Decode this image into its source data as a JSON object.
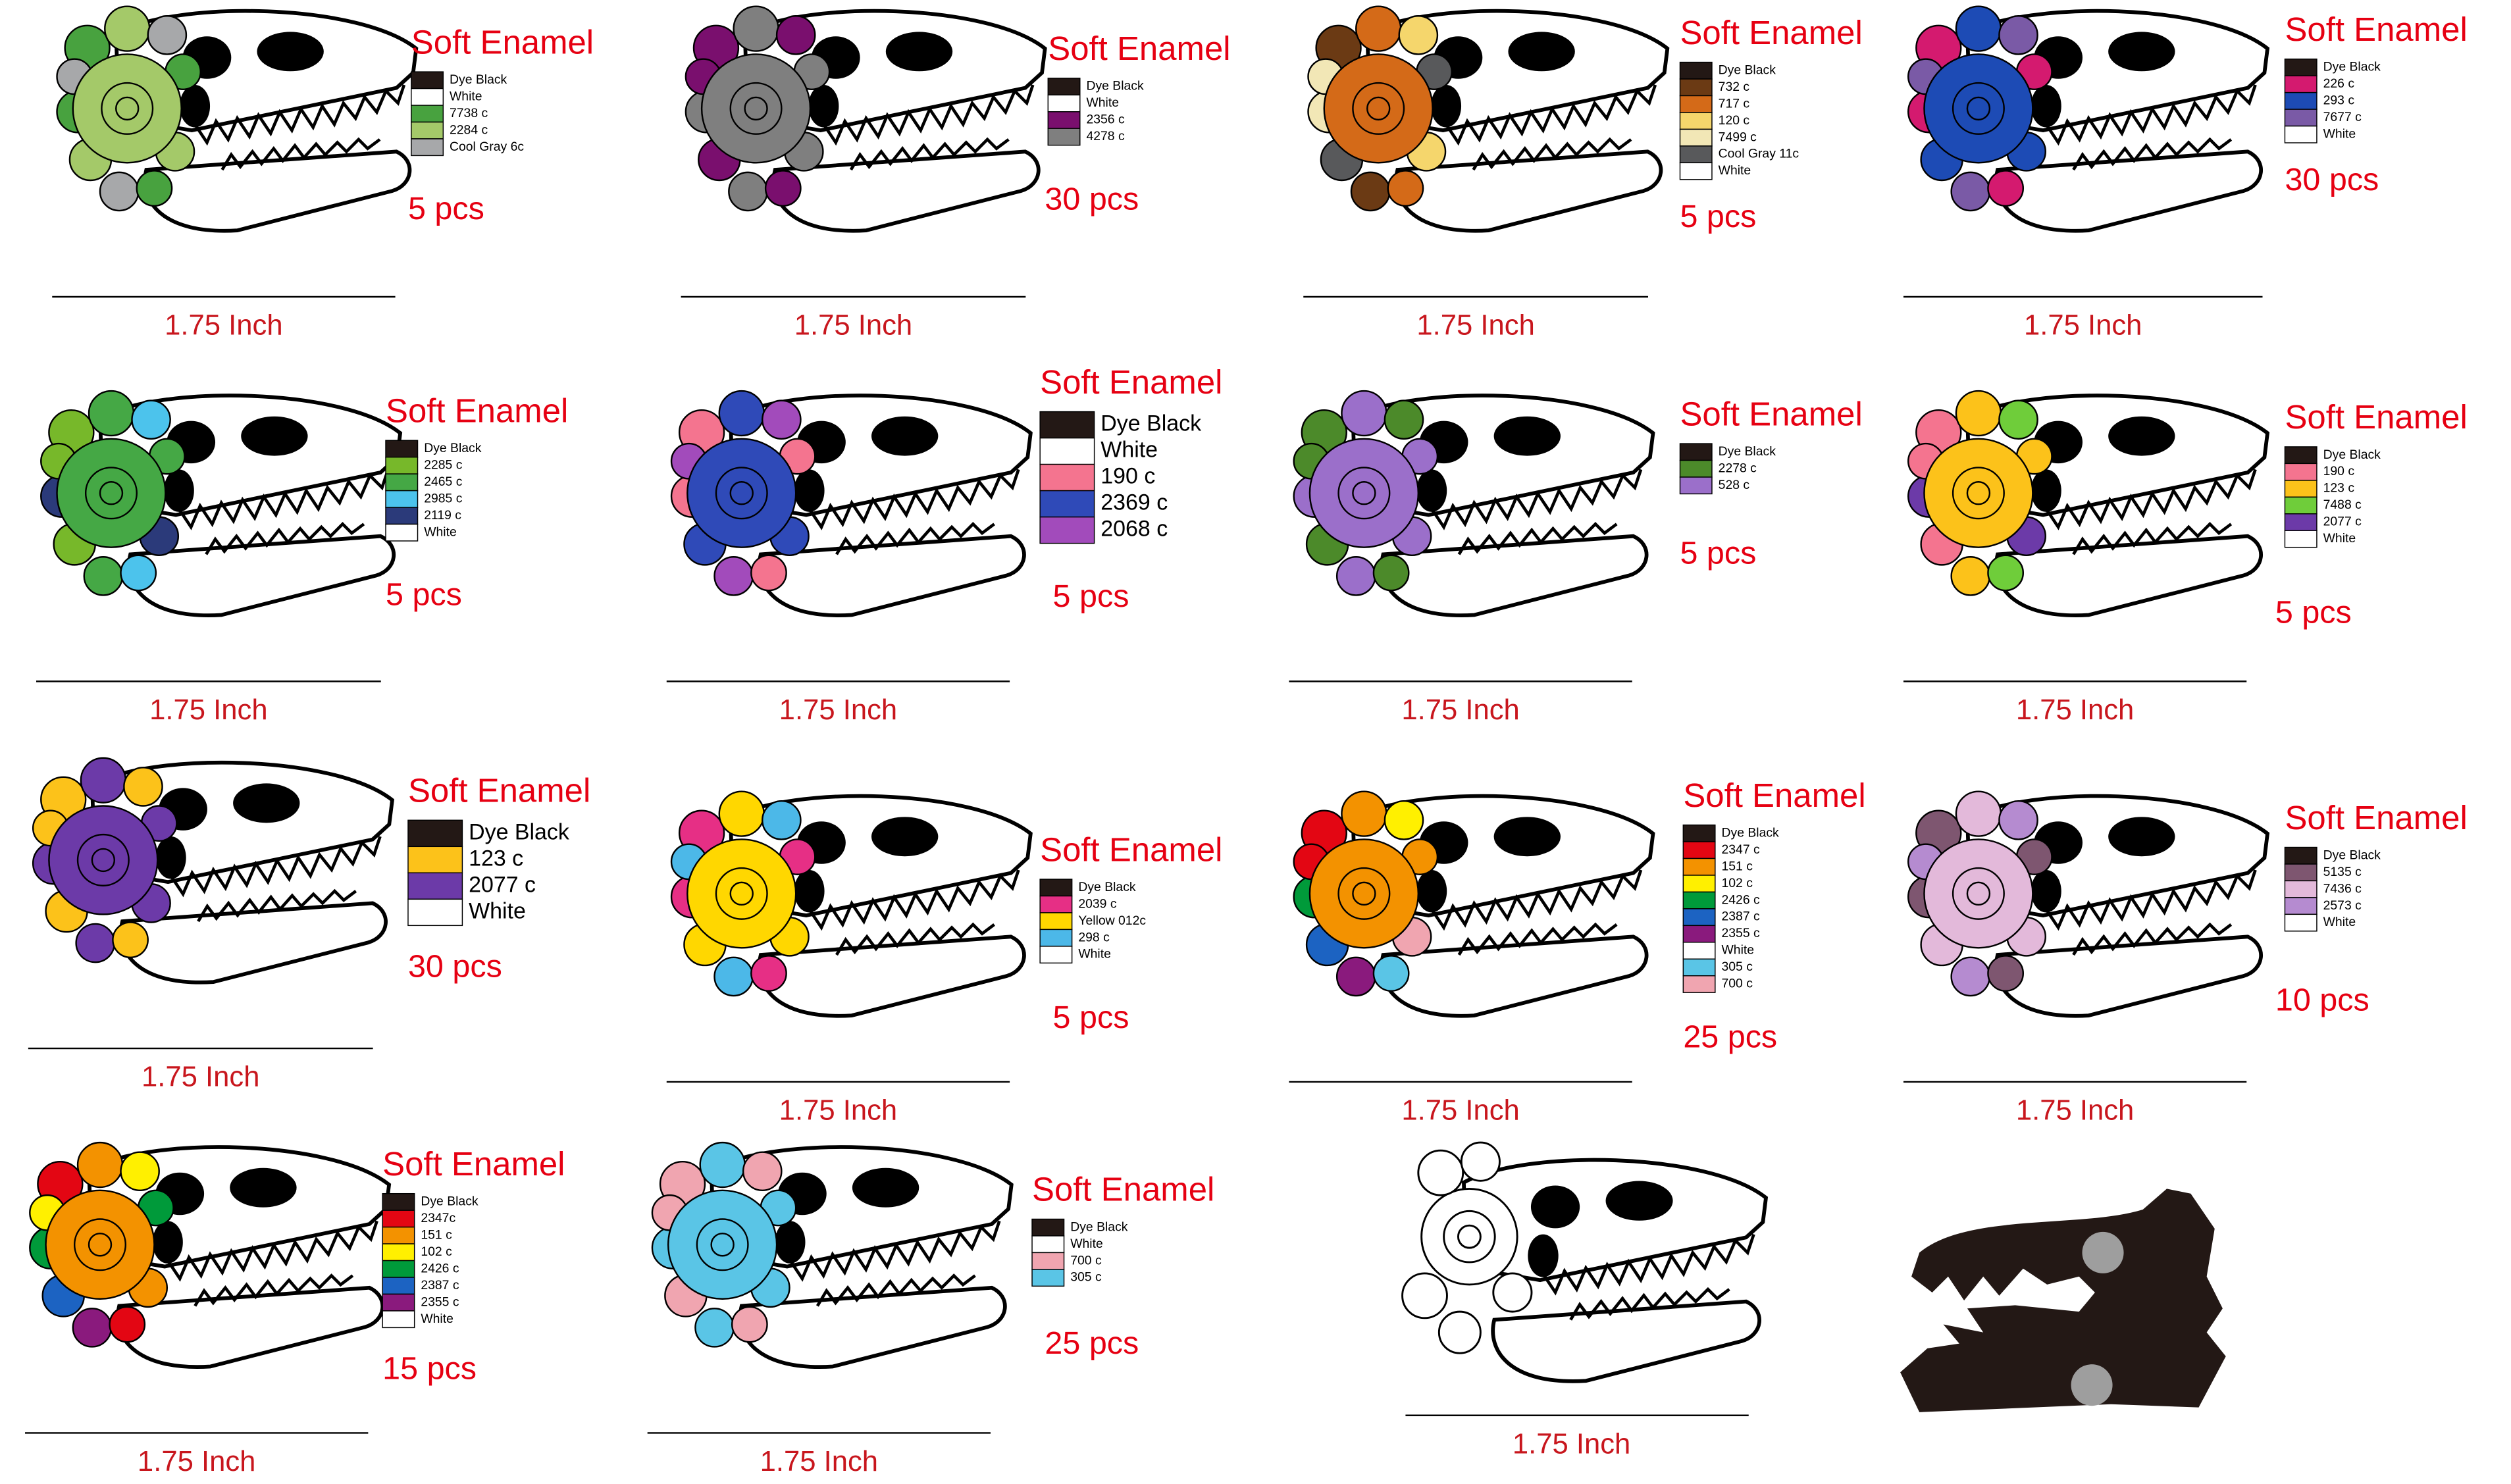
{
  "pins": [
    {
      "title": "Soft Enamel",
      "swatches": [
        {
          "name": "Dye Black",
          "color": "#231815"
        },
        {
          "name": "White",
          "color": "#ffffff"
        },
        {
          "name": "7738 c",
          "color": "#48a23f"
        },
        {
          "name": "2284 c",
          "color": "#a4c969"
        },
        {
          "name": "Cool Gray 6c",
          "color": "#a7a8aa"
        }
      ],
      "quantity": "5 pcs",
      "size": "1.75 Inch"
    },
    {
      "title": "Soft Enamel",
      "swatches": [
        {
          "name": "Dye Black",
          "color": "#231815"
        },
        {
          "name": "White",
          "color": "#ffffff"
        },
        {
          "name": "2356 c",
          "color": "#7a0f6e"
        },
        {
          "name": "4278 c",
          "color": "#7f7f7f"
        }
      ],
      "quantity": "30 pcs",
      "size": "1.75 Inch"
    },
    {
      "title": "Soft Enamel",
      "swatches": [
        {
          "name": "Dye Black",
          "color": "#231815"
        },
        {
          "name": "732 c",
          "color": "#6b3a14"
        },
        {
          "name": "717 c",
          "color": "#d46a18"
        },
        {
          "name": "120 c",
          "color": "#f5d66c"
        },
        {
          "name": "7499 c",
          "color": "#f2e7b6"
        },
        {
          "name": "Cool Gray 11c",
          "color": "#58595b"
        },
        {
          "name": "White",
          "color": "#ffffff"
        }
      ],
      "quantity": "5 pcs",
      "size": "1.75 Inch"
    },
    {
      "title": "Soft Enamel",
      "swatches": [
        {
          "name": "Dye Black",
          "color": "#231815"
        },
        {
          "name": "226 c",
          "color": "#d41a6f"
        },
        {
          "name": "293 c",
          "color": "#1d4bb5"
        },
        {
          "name": "7677 c",
          "color": "#7a5aa6"
        },
        {
          "name": "White",
          "color": "#ffffff"
        }
      ],
      "quantity": "30 pcs",
      "size": "1.75 Inch"
    },
    {
      "title": "Soft Enamel",
      "swatches": [
        {
          "name": "Dye Black",
          "color": "#231815"
        },
        {
          "name": "2285 c",
          "color": "#77b82a"
        },
        {
          "name": "2465 c",
          "color": "#45a845"
        },
        {
          "name": "2985 c",
          "color": "#4cc3ec"
        },
        {
          "name": "2119 c",
          "color": "#2b3a7a"
        },
        {
          "name": "White",
          "color": "#ffffff"
        }
      ],
      "quantity": "5 pcs",
      "size": "1.75 Inch"
    },
    {
      "title": "Soft Enamel",
      "swatches": [
        {
          "name": "Dye Black",
          "color": "#231815"
        },
        {
          "name": "White",
          "color": "#ffffff"
        },
        {
          "name": "190 c",
          "color": "#f4748f"
        },
        {
          "name": "2369 c",
          "color": "#2f4ab8"
        },
        {
          "name": "2068 c",
          "color": "#a24bbb"
        }
      ],
      "quantity": "5 pcs",
      "size": "1.75 Inch"
    },
    {
      "title": "Soft Enamel",
      "swatches": [
        {
          "name": "Dye Black",
          "color": "#231815"
        },
        {
          "name": "2278 c",
          "color": "#4c8a2a"
        },
        {
          "name": "528 c",
          "color": "#9b6fca"
        }
      ],
      "quantity": "5 pcs",
      "size": "1.75 Inch"
    },
    {
      "title": "Soft Enamel",
      "swatches": [
        {
          "name": "Dye Black",
          "color": "#231815"
        },
        {
          "name": "190 c",
          "color": "#f4748f"
        },
        {
          "name": "123 c",
          "color": "#fcc21a"
        },
        {
          "name": "7488 c",
          "color": "#6fcd3a"
        },
        {
          "name": "2077 c",
          "color": "#6c3aa8"
        },
        {
          "name": "White",
          "color": "#ffffff"
        }
      ],
      "quantity": "5 pcs",
      "size": "1.75 Inch"
    },
    {
      "title": "Soft Enamel",
      "swatches": [
        {
          "name": "Dye Black",
          "color": "#231815"
        },
        {
          "name": "123 c",
          "color": "#fcc21a"
        },
        {
          "name": "2077 c",
          "color": "#6c3aa8"
        },
        {
          "name": "White",
          "color": "#ffffff"
        }
      ],
      "quantity": "30 pcs",
      "size": "1.75 Inch"
    },
    {
      "title": "Soft Enamel",
      "swatches": [
        {
          "name": "Dye Black",
          "color": "#231815"
        },
        {
          "name": "2039 c",
          "color": "#e62f85"
        },
        {
          "name": "Yellow 012c",
          "color": "#ffd700"
        },
        {
          "name": "298 c",
          "color": "#4cb8e8"
        },
        {
          "name": "White",
          "color": "#ffffff"
        }
      ],
      "quantity": "5 pcs",
      "size": "1.75 Inch"
    },
    {
      "title": "Soft Enamel",
      "swatches": [
        {
          "name": "Dye Black",
          "color": "#231815"
        },
        {
          "name": "2347 c",
          "color": "#e30613"
        },
        {
          "name": "151 c",
          "color": "#f39200"
        },
        {
          "name": "102 c",
          "color": "#fff000"
        },
        {
          "name": "2426 c",
          "color": "#009a3a"
        },
        {
          "name": "2387 c",
          "color": "#1c63c2"
        },
        {
          "name": "2355 c",
          "color": "#8a1a7d"
        },
        {
          "name": "White",
          "color": "#ffffff"
        },
        {
          "name": "305 c",
          "color": "#5ac5e6"
        },
        {
          "name": "700 c",
          "color": "#f0a5b0"
        }
      ],
      "quantity": "25 pcs",
      "size": "1.75 Inch"
    },
    {
      "title": "Soft Enamel",
      "swatches": [
        {
          "name": "Dye Black",
          "color": "#231815"
        },
        {
          "name": "5135 c",
          "color": "#7e5670"
        },
        {
          "name": "7436 c",
          "color": "#e3b9da"
        },
        {
          "name": "2573 c",
          "color": "#b58bd0"
        },
        {
          "name": "White",
          "color": "#ffffff"
        }
      ],
      "quantity": "10 pcs",
      "size": "1.75 Inch"
    },
    {
      "title": "Soft Enamel",
      "swatches": [
        {
          "name": "Dye Black",
          "color": "#231815"
        },
        {
          "name": "2347c",
          "color": "#e30613"
        },
        {
          "name": "151 c",
          "color": "#f39200"
        },
        {
          "name": "102 c",
          "color": "#fff000"
        },
        {
          "name": "2426 c",
          "color": "#009a3a"
        },
        {
          "name": "2387 c",
          "color": "#1c63c2"
        },
        {
          "name": "2355 c",
          "color": "#8a1a7d"
        },
        {
          "name": "White",
          "color": "#ffffff"
        }
      ],
      "quantity": "15 pcs",
      "size": "1.75 Inch"
    },
    {
      "title": "Soft Enamel",
      "swatches": [
        {
          "name": "Dye Black",
          "color": "#231815"
        },
        {
          "name": "White",
          "color": "#ffffff"
        },
        {
          "name": "700 c",
          "color": "#f0a5b0"
        },
        {
          "name": "305 c",
          "color": "#5ac5e6"
        }
      ],
      "quantity": "25 pcs",
      "size": "1.75 Inch"
    }
  ],
  "blank_pin": {
    "size": "1.75 Inch"
  }
}
